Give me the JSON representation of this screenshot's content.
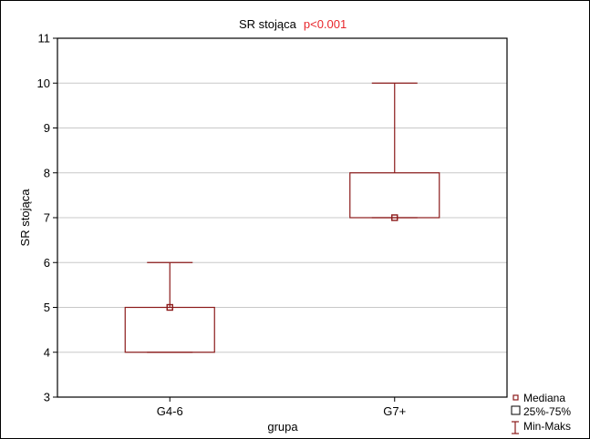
{
  "chart_data": {
    "type": "boxplot",
    "title": "SR stojąca",
    "title_annotation": "p<0.001",
    "xlabel": "grupa",
    "ylabel": "SR stojąca",
    "ylim": [
      3,
      11
    ],
    "yticks": [
      3,
      4,
      5,
      6,
      7,
      8,
      9,
      10,
      11
    ],
    "grid": true,
    "categories": [
      "G4-6",
      "G7+"
    ],
    "series": [
      {
        "category": "G4-6",
        "min": 4,
        "q1": 4,
        "median": 5,
        "q3": 5,
        "max": 6
      },
      {
        "category": "G7+",
        "min": 7,
        "q1": 7,
        "median": 7,
        "q3": 8,
        "max": 10
      }
    ],
    "legend": {
      "placement": "bottom-right",
      "entries": [
        "Mediana",
        "25%-75%",
        "Min-Maks"
      ]
    },
    "colors": {
      "box": "#8b1a1a",
      "annotation": "#e8262c",
      "grid": "#c8c8c8",
      "axis": "#000000"
    }
  }
}
